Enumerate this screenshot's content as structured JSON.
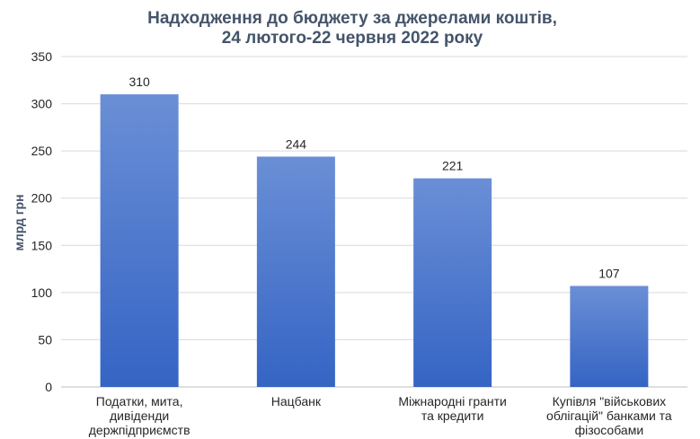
{
  "chart_data": {
    "type": "bar",
    "title": [
      "Надходження до бюджету за джерелами коштів,",
      "24 лютого-22 червня 2022 року"
    ],
    "ylabel": "млрд грн",
    "xlabel": "",
    "ylim": [
      0,
      350
    ],
    "yticks": [
      0,
      50,
      100,
      150,
      200,
      250,
      300,
      350
    ],
    "grid": true,
    "categories": [
      [
        "Податки, мита,",
        "дивіденди",
        "держпідприємств"
      ],
      [
        "Нацбанк"
      ],
      [
        "Міжнародні гранти",
        "та кредити"
      ],
      [
        "Купівля \"військових",
        "облігацій\" банками та",
        "фізособами"
      ]
    ],
    "values": [
      310,
      244,
      221,
      107
    ],
    "bar_color_top": "#6a8fd6",
    "bar_color_bottom": "#3564c4"
  }
}
